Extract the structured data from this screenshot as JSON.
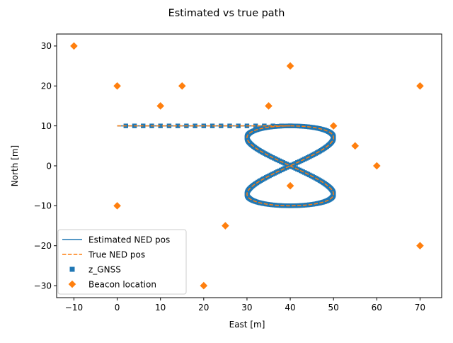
{
  "figure": {
    "title": "Estimated vs true path"
  },
  "chart_data": {
    "type": "scatter",
    "title": "Estimated vs true path",
    "xlabel": "East [m]",
    "ylabel": "North [m]",
    "xlim": [
      -14,
      75
    ],
    "ylim": [
      -33,
      33
    ],
    "xticks": [
      -10,
      0,
      10,
      20,
      30,
      40,
      50,
      60,
      70
    ],
    "yticks": [
      -30,
      -20,
      -10,
      0,
      10,
      20,
      30
    ],
    "grid": false,
    "legend_position": "lower-left",
    "path": {
      "description_of_shape": "straight approach from (0,10) to (40,10) followed by a figure-eight centered at (40,0) with half-width 10 and half-height 10",
      "approach_start": [
        0,
        10
      ],
      "approach_end": [
        40,
        10
      ],
      "figure_eight_center": [
        40,
        0
      ],
      "figure_eight_half_width": 10,
      "figure_eight_half_height": 10
    },
    "series": [
      {
        "name": "Estimated NED pos",
        "kind": "line",
        "color": "#1f77b4",
        "linestyle": "solid"
      },
      {
        "name": "True NED pos",
        "kind": "line",
        "color": "#ff7f0e",
        "linestyle": "dashed"
      },
      {
        "name": "z_GNSS",
        "kind": "scatter",
        "marker": "square",
        "color": "#1f77b4",
        "x": [
          2,
          4,
          6,
          8,
          10,
          12,
          14,
          16,
          18,
          20,
          22,
          24,
          26,
          28,
          30,
          32,
          34,
          36,
          38,
          40
        ],
        "y": [
          10,
          10,
          10,
          10,
          10,
          10,
          10,
          10,
          10,
          10,
          10,
          10,
          10,
          10,
          10,
          10,
          10,
          10,
          10,
          10
        ],
        "dense_on_path": true
      },
      {
        "name": "Beacon location",
        "kind": "scatter",
        "marker": "diamond",
        "color": "#ff7f0e",
        "x": [
          -10,
          0,
          15,
          40,
          70,
          10,
          35,
          50,
          55,
          60,
          40,
          0,
          25,
          70,
          20
        ],
        "y": [
          30,
          20,
          20,
          25,
          20,
          15,
          15,
          10,
          5,
          0,
          -5,
          -10,
          -15,
          -20,
          -30
        ]
      }
    ]
  }
}
